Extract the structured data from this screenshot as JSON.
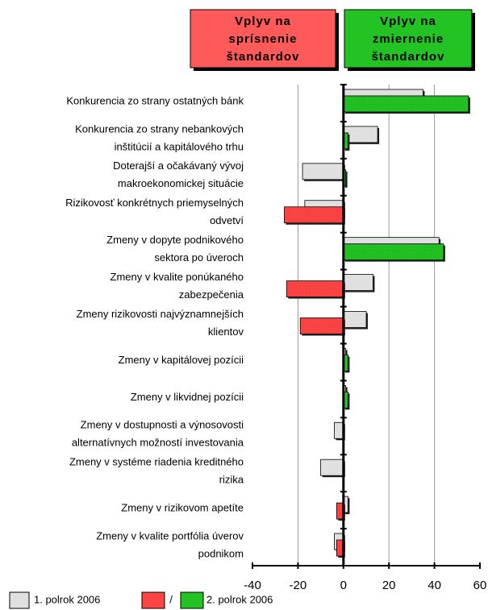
{
  "chart_data": {
    "type": "hbar",
    "headers": [
      {
        "lines": [
          "Vplyv na",
          "sprísnenie",
          "štandardov"
        ],
        "color": "#ff5a5a"
      },
      {
        "lines": [
          "Vplyv na",
          "zmiernenie",
          "štandardov"
        ],
        "color": "#22c322"
      }
    ],
    "categories": [
      [
        "Konkurencia zo strany ostatných bánk"
      ],
      [
        "Konkurencia zo strany nebankových",
        "inštitúcií  a kapitálového trhu"
      ],
      [
        "Doterajší a očakávaný vývoj",
        "makroekonomickej situácie"
      ],
      [
        "Rizikovosť konkrétnych priemyselných",
        "odvetví"
      ],
      [
        "Zmeny v dopyte podnikového",
        "sektora po úveroch"
      ],
      [
        "Zmeny v kvalite ponúkaného",
        "zabezpečenia"
      ],
      [
        "Zmeny rizikovosti najvýznamnejších",
        "klientov"
      ],
      [
        "Zmeny v kapitálovej pozícii"
      ],
      [
        "Zmeny v likvidnej pozícii"
      ],
      [
        "Zmeny v dostupnosti a výnosovosti",
        "alternatívnych možností investovania"
      ],
      [
        "Zmeny v systéme riadenia kreditného",
        "rizika"
      ],
      [
        "Zmeny v rizikovom apetíte"
      ],
      [
        "Zmeny v kvalite portfólia úverov",
        "podnikom"
      ]
    ],
    "series": [
      {
        "name": "1. polrok 2006",
        "color": "#e0e0e0",
        "values": [
          35,
          15,
          -18,
          -17,
          42,
          13,
          10,
          1,
          1,
          -4,
          -10,
          2,
          -4
        ]
      },
      {
        "name": "2. polrok 2006",
        "color": "#22c322",
        "negative_color": "#ff4444",
        "values": [
          55,
          2,
          1,
          -26,
          44,
          -25,
          -19,
          2,
          2,
          0,
          0,
          -3,
          -3
        ]
      }
    ],
    "legend_separator": "/",
    "xlim": [
      -40,
      60
    ],
    "xticks": [
      -40,
      -20,
      0,
      20,
      40,
      60
    ],
    "grid": true
  }
}
